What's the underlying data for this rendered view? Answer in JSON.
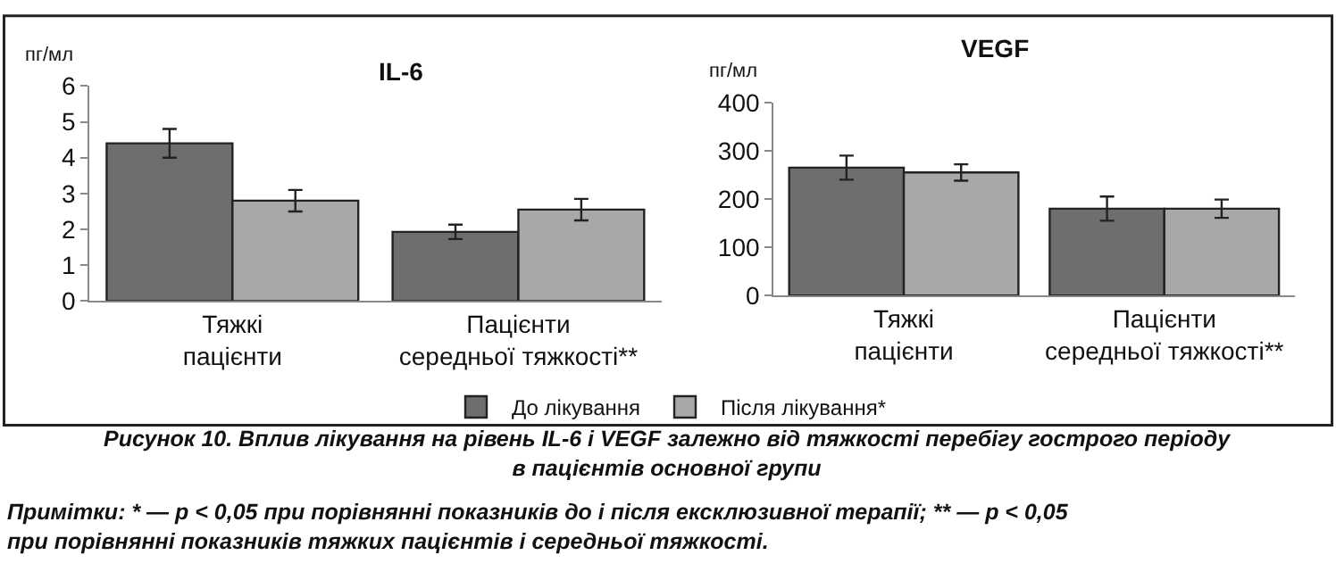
{
  "chart_data": [
    {
      "type": "bar",
      "title": "IL-6",
      "ylabel": "пг/мл",
      "categories": [
        "Тяжкі\nпацієнти",
        "Пацієнти\nсередньої тяжкості**"
      ],
      "series": [
        {
          "name": "До лікування",
          "color": "#6e6e6e",
          "values": [
            4.4,
            1.93
          ],
          "errors": [
            0.4,
            0.2
          ]
        },
        {
          "name": "Після лікування*",
          "color": "#a8a8a8",
          "values": [
            2.8,
            2.55
          ],
          "errors": [
            0.3,
            0.3
          ]
        }
      ],
      "ylim": [
        0,
        6
      ],
      "yticks": [
        0,
        1,
        2,
        3,
        4,
        5,
        6
      ],
      "legend": "bottom",
      "annotations": [
        "Рисунок 10. Вплив лікування на рівень IL-6 і VEGF залежно від тяжкості перебігу гострого періоду\nв пацієнтів основної групи",
        "Примітки: * — p < 0,05 при порівнянні показників до і після ексклюзивної терапії; ** — p < 0,05\nпри порівнянні показників тяжких пацієнтів і середньої тяжкості."
      ]
    },
    {
      "type": "bar",
      "title": "VEGF",
      "ylabel": "пг/мл",
      "categories": [
        "Тяжкі\nпацієнти",
        "Пацієнти\nсередньої тяжкості**"
      ],
      "series": [
        {
          "name": "До лікування",
          "color": "#6e6e6e",
          "values": [
            265,
            180
          ],
          "errors": [
            25,
            25
          ]
        },
        {
          "name": "Після лікування*",
          "color": "#a8a8a8",
          "values": [
            255,
            180
          ],
          "errors": [
            17,
            19
          ]
        }
      ],
      "ylim": [
        0,
        400
      ],
      "yticks": [
        0,
        100,
        200,
        300,
        400
      ],
      "legend": "bottom"
    }
  ]
}
